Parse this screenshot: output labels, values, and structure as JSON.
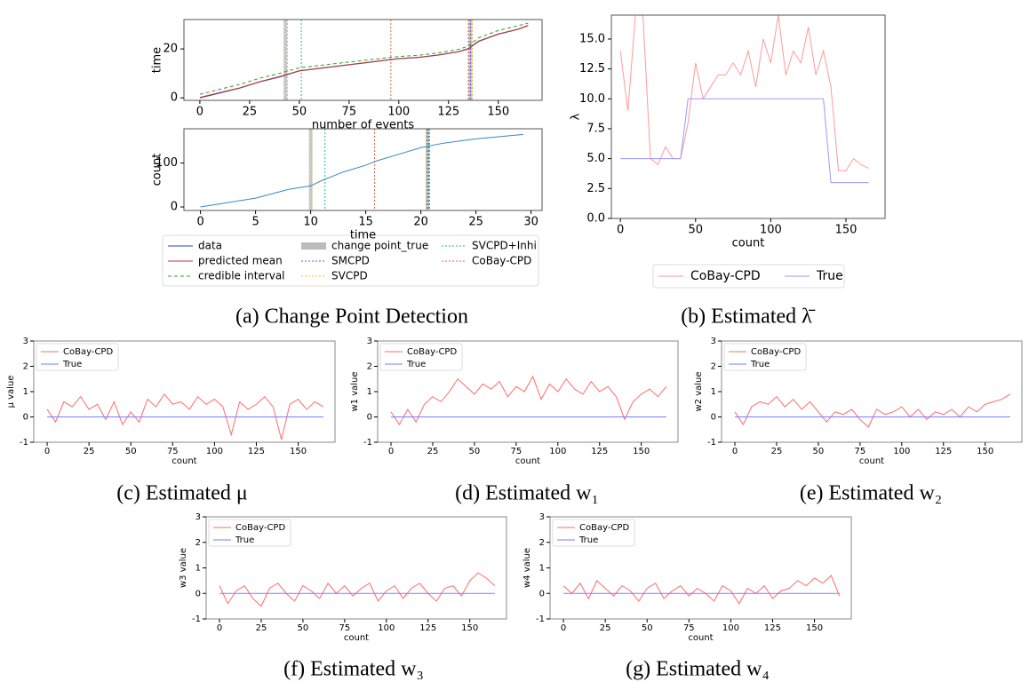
{
  "chart_data": [
    {
      "type": "line",
      "caption": "(a) Change Point Detection",
      "xlabel": "number of events",
      "ylabel": "time",
      "x": [
        0,
        10,
        20,
        30,
        40,
        50,
        60,
        70,
        80,
        90,
        100,
        110,
        120,
        130,
        135,
        140,
        150,
        160,
        165
      ],
      "series": [
        {
          "name": "data",
          "color": "#2b3fc4",
          "values": [
            0,
            2,
            4,
            6.5,
            8.5,
            11,
            12,
            13,
            14,
            15,
            16,
            16.5,
            17.5,
            18.8,
            20,
            23,
            26,
            28,
            29.5
          ]
        },
        {
          "name": "predicted mean",
          "color": "#c0392b",
          "values": [
            0.2,
            2.2,
            4.1,
            6.6,
            8.7,
            11.1,
            12.1,
            13.1,
            14.1,
            15.1,
            16.1,
            16.6,
            17.6,
            18.9,
            20.2,
            23.2,
            26.1,
            28.1,
            29.6
          ]
        },
        {
          "name": "credible interval",
          "color": "#2ca02c",
          "dashed": true,
          "values": [
            1.5,
            3.5,
            5.5,
            8,
            10,
            12.3,
            13.2,
            14.2,
            15.1,
            16,
            16.9,
            17.4,
            18.4,
            19.8,
            21.2,
            24.5,
            27.5,
            29.5,
            30.5
          ]
        }
      ],
      "change_points": [
        {
          "name": "change point_true",
          "color": "#bbbbbb",
          "x": [
            43,
            136
          ]
        },
        {
          "name": "SMCPD",
          "color": "#6a5acd",
          "x": [
            136
          ]
        },
        {
          "name": "SVCPD",
          "color": "#f0b93a",
          "x": [
            44,
            137
          ]
        },
        {
          "name": "SVCPD+Inhi",
          "color": "#20b2aa",
          "x": [
            51,
            135
          ]
        },
        {
          "name": "CoBay-CPD",
          "color": "#e8604a",
          "x": [
            96,
            135
          ]
        }
      ],
      "xlim": [
        -8,
        172
      ],
      "xticks": [
        0,
        25,
        50,
        75,
        100,
        125,
        150
      ],
      "ylim": [
        -1,
        32
      ],
      "yticks": [
        0,
        20
      ],
      "legend": "below"
    },
    {
      "type": "line",
      "xlabel": "time",
      "ylabel": "count",
      "x": [
        0,
        2,
        5,
        8,
        10,
        11,
        13,
        15,
        16,
        18,
        20,
        22,
        25,
        28,
        29.3
      ],
      "series": [
        {
          "color": "#3a86c8",
          "values": [
            0,
            8,
            20,
            40,
            48,
            60,
            80,
            95,
            105,
            120,
            135,
            145,
            155,
            162,
            165
          ]
        }
      ],
      "change_points": [
        {
          "color": "#bbbbbb",
          "x": [
            10,
            20.6
          ]
        },
        {
          "color": "#6a5acd",
          "x": [
            20.6
          ]
        },
        {
          "color": "#f0b93a",
          "x": [
            10.1,
            20.5
          ]
        },
        {
          "color": "#20b2aa",
          "x": [
            11.3,
            20.7
          ]
        },
        {
          "color": "#e8604a",
          "x": [
            15.8,
            20.8
          ]
        }
      ],
      "xlim": [
        -1.5,
        31
      ],
      "xticks": [
        0,
        5,
        10,
        15,
        20,
        25,
        30
      ],
      "ylim": [
        -8,
        178
      ],
      "yticks": [
        0,
        100
      ]
    },
    {
      "type": "line",
      "caption": "(b) Estimated λ̄",
      "xlabel": "count",
      "ylabel": "λ",
      "x": [
        0,
        5,
        10,
        15,
        20,
        25,
        30,
        35,
        40,
        45,
        50,
        55,
        60,
        65,
        70,
        75,
        80,
        85,
        90,
        95,
        100,
        105,
        110,
        115,
        120,
        125,
        130,
        135,
        140,
        145,
        150,
        155,
        160,
        165
      ],
      "series": [
        {
          "name": "CoBay-CPD",
          "color": "#ff9a9a",
          "values": [
            14,
            9,
            17,
            17,
            5,
            4.5,
            6,
            5,
            5,
            8,
            13,
            10,
            11,
            12,
            12,
            13,
            12,
            14,
            11,
            15,
            13,
            17,
            12,
            14,
            13,
            16,
            12,
            14,
            11,
            4,
            4,
            5,
            4.5,
            4.2
          ]
        },
        {
          "name": "True",
          "color": "#9a9aff",
          "values": [
            5,
            5,
            5,
            5,
            5,
            5,
            5,
            5,
            5,
            10,
            10,
            10,
            10,
            10,
            10,
            10,
            10,
            10,
            10,
            10,
            10,
            10,
            10,
            10,
            10,
            10,
            10,
            10,
            3,
            3,
            3,
            3,
            3,
            3
          ]
        }
      ],
      "xlim": [
        -6,
        176
      ],
      "xticks": [
        0,
        50,
        100,
        150
      ],
      "ylim": [
        0,
        17
      ],
      "yticks": [
        {
          "value": 0,
          "label": "0.0"
        },
        {
          "value": 2.5,
          "label": "2.5"
        },
        {
          "value": 5,
          "label": "5.0"
        },
        {
          "value": 7.5,
          "label": "7.5"
        },
        {
          "value": 10,
          "label": "10.0"
        },
        {
          "value": 12.5,
          "label": "12.5"
        },
        {
          "value": 15,
          "label": "15.0"
        }
      ],
      "legend": "below"
    },
    {
      "type": "line",
      "caption": "(c) Estimated μ",
      "xlabel": "count",
      "ylabel": "μ value",
      "x": [
        0,
        5,
        10,
        15,
        20,
        25,
        30,
        35,
        40,
        45,
        50,
        55,
        60,
        65,
        70,
        75,
        80,
        85,
        90,
        95,
        100,
        105,
        110,
        115,
        120,
        125,
        130,
        135,
        140,
        145,
        150,
        155,
        160,
        165
      ],
      "series": [
        {
          "name": "CoBay-CPD",
          "color": "#ff6b6b",
          "values": [
            0.3,
            -0.2,
            0.6,
            0.4,
            0.8,
            0.3,
            0.5,
            -0.1,
            0.6,
            -0.3,
            0.2,
            -0.2,
            0.7,
            0.4,
            0.9,
            0.5,
            0.6,
            0.3,
            0.8,
            0.5,
            0.7,
            0.4,
            -0.7,
            0.6,
            0.3,
            0.5,
            0.8,
            0.4,
            -0.9,
            0.5,
            0.7,
            0.3,
            0.6,
            0.4
          ]
        },
        {
          "name": "True",
          "color": "#7b7bff",
          "values": [
            0,
            0,
            0,
            0,
            0,
            0,
            0,
            0,
            0,
            0,
            0,
            0,
            0,
            0,
            0,
            0,
            0,
            0,
            0,
            0,
            0,
            0,
            0,
            0,
            0,
            0,
            0,
            0,
            0,
            0,
            0,
            0,
            0,
            0
          ]
        }
      ],
      "xlim": [
        -8,
        172
      ],
      "xticks": [
        0,
        25,
        50,
        75,
        100,
        125,
        150
      ],
      "ylim": [
        -1,
        3
      ],
      "yticks": [
        -1,
        0,
        1,
        2,
        3
      ],
      "legend": "upper left"
    },
    {
      "type": "line",
      "caption": "(d) Estimated w₁",
      "xlabel": "count",
      "ylabel": "w1 value",
      "x": [
        0,
        5,
        10,
        15,
        20,
        25,
        30,
        35,
        40,
        45,
        50,
        55,
        60,
        65,
        70,
        75,
        80,
        85,
        90,
        95,
        100,
        105,
        110,
        115,
        120,
        125,
        130,
        135,
        140,
        145,
        150,
        155,
        160,
        165
      ],
      "series": [
        {
          "name": "CoBay-CPD",
          "color": "#ff6b6b",
          "values": [
            0.2,
            -0.3,
            0.3,
            -0.2,
            0.5,
            0.8,
            0.6,
            1.0,
            1.5,
            1.2,
            0.9,
            1.3,
            1.1,
            1.4,
            0.8,
            1.2,
            1.0,
            1.6,
            0.7,
            1.3,
            1.0,
            1.5,
            1.1,
            0.9,
            1.4,
            1.0,
            1.2,
            0.8,
            -0.1,
            0.6,
            0.9,
            1.1,
            0.8,
            1.2
          ]
        },
        {
          "name": "True",
          "color": "#7b7bff",
          "values": [
            0,
            0,
            0,
            0,
            0,
            0,
            0,
            0,
            0,
            0,
            0,
            0,
            0,
            0,
            0,
            0,
            0,
            0,
            0,
            0,
            0,
            0,
            0,
            0,
            0,
            0,
            0,
            0,
            0,
            0,
            0,
            0,
            0,
            0
          ]
        }
      ],
      "xlim": [
        -8,
        172
      ],
      "xticks": [
        0,
        25,
        50,
        75,
        100,
        125,
        150
      ],
      "ylim": [
        -1,
        3
      ],
      "yticks": [
        -1,
        0,
        1,
        2,
        3
      ],
      "legend": "upper left"
    },
    {
      "type": "line",
      "caption": "(e) Estimated w₂",
      "xlabel": "count",
      "ylabel": "w2 value",
      "x": [
        0,
        5,
        10,
        15,
        20,
        25,
        30,
        35,
        40,
        45,
        50,
        55,
        60,
        65,
        70,
        75,
        80,
        85,
        90,
        95,
        100,
        105,
        110,
        115,
        120,
        125,
        130,
        135,
        140,
        145,
        150,
        155,
        160,
        165
      ],
      "series": [
        {
          "name": "CoBay-CPD",
          "color": "#ff6b6b",
          "values": [
            0.2,
            -0.3,
            0.4,
            0.6,
            0.5,
            0.8,
            0.4,
            0.7,
            0.3,
            0.6,
            0.2,
            -0.2,
            0.2,
            0.1,
            0.3,
            -0.1,
            -0.4,
            0.3,
            0.1,
            0.2,
            0.4,
            0.0,
            0.3,
            -0.1,
            0.2,
            0.1,
            0.3,
            0.0,
            0.4,
            0.2,
            0.5,
            0.6,
            0.7,
            0.9
          ]
        },
        {
          "name": "True",
          "color": "#7b7bff",
          "values": [
            0,
            0,
            0,
            0,
            0,
            0,
            0,
            0,
            0,
            0,
            0,
            0,
            0,
            0,
            0,
            0,
            0,
            0,
            0,
            0,
            0,
            0,
            0,
            0,
            0,
            0,
            0,
            0,
            0,
            0,
            0,
            0,
            0,
            0
          ]
        }
      ],
      "xlim": [
        -8,
        172
      ],
      "xticks": [
        0,
        25,
        50,
        75,
        100,
        125,
        150
      ],
      "ylim": [
        -1,
        3
      ],
      "yticks": [
        -1,
        0,
        1,
        2,
        3
      ],
      "legend": "upper left"
    },
    {
      "type": "line",
      "caption": "(f) Estimated w₃",
      "xlabel": "count",
      "ylabel": "w3 value",
      "x": [
        0,
        5,
        10,
        15,
        20,
        25,
        30,
        35,
        40,
        45,
        50,
        55,
        60,
        65,
        70,
        75,
        80,
        85,
        90,
        95,
        100,
        105,
        110,
        115,
        120,
        125,
        130,
        135,
        140,
        145,
        150,
        155,
        160,
        165
      ],
      "series": [
        {
          "name": "CoBay-CPD",
          "color": "#ff6b6b",
          "values": [
            0.3,
            -0.4,
            0.1,
            0.3,
            -0.2,
            -0.5,
            0.2,
            0.4,
            0.0,
            -0.3,
            0.3,
            0.1,
            -0.2,
            0.4,
            0.0,
            0.3,
            -0.1,
            0.2,
            0.4,
            -0.3,
            0.1,
            0.3,
            -0.2,
            0.2,
            0.4,
            0.0,
            -0.3,
            0.2,
            0.3,
            -0.1,
            0.5,
            0.8,
            0.6,
            0.3
          ]
        },
        {
          "name": "True",
          "color": "#7b7bff",
          "values": [
            0,
            0,
            0,
            0,
            0,
            0,
            0,
            0,
            0,
            0,
            0,
            0,
            0,
            0,
            0,
            0,
            0,
            0,
            0,
            0,
            0,
            0,
            0,
            0,
            0,
            0,
            0,
            0,
            0,
            0,
            0,
            0,
            0,
            0
          ]
        }
      ],
      "xlim": [
        -8,
        172
      ],
      "xticks": [
        0,
        25,
        50,
        75,
        100,
        125,
        150
      ],
      "ylim": [
        -1,
        3
      ],
      "yticks": [
        -1,
        0,
        1,
        2,
        3
      ],
      "legend": "upper left"
    },
    {
      "type": "line",
      "caption": "(g) Estimated w₄",
      "xlabel": "count",
      "ylabel": "w4 value",
      "x": [
        0,
        5,
        10,
        15,
        20,
        25,
        30,
        35,
        40,
        45,
        50,
        55,
        60,
        65,
        70,
        75,
        80,
        85,
        90,
        95,
        100,
        105,
        110,
        115,
        120,
        125,
        130,
        135,
        140,
        145,
        150,
        155,
        160,
        165
      ],
      "series": [
        {
          "name": "CoBay-CPD",
          "color": "#ff6b6b",
          "values": [
            0.3,
            0.0,
            0.4,
            -0.2,
            0.5,
            0.2,
            -0.1,
            0.3,
            0.1,
            -0.3,
            0.2,
            0.4,
            -0.2,
            0.1,
            0.3,
            -0.1,
            0.2,
            0.0,
            -0.3,
            0.3,
            0.1,
            -0.4,
            0.2,
            0.0,
            0.3,
            -0.2,
            0.1,
            0.2,
            0.5,
            0.3,
            0.6,
            0.4,
            0.7,
            -0.1
          ]
        },
        {
          "name": "True",
          "color": "#7b7bff",
          "values": [
            0,
            0,
            0,
            0,
            0,
            0,
            0,
            0,
            0,
            0,
            0,
            0,
            0,
            0,
            0,
            0,
            0,
            0,
            0,
            0,
            0,
            0,
            0,
            0,
            0,
            0,
            0,
            0,
            0,
            0,
            0,
            0,
            0,
            0
          ]
        }
      ],
      "xlim": [
        -8,
        172
      ],
      "xticks": [
        0,
        25,
        50,
        75,
        100,
        125,
        150
      ],
      "ylim": [
        -1,
        3
      ],
      "yticks": [
        -1,
        0,
        1,
        2,
        3
      ],
      "legend": "upper left"
    }
  ]
}
